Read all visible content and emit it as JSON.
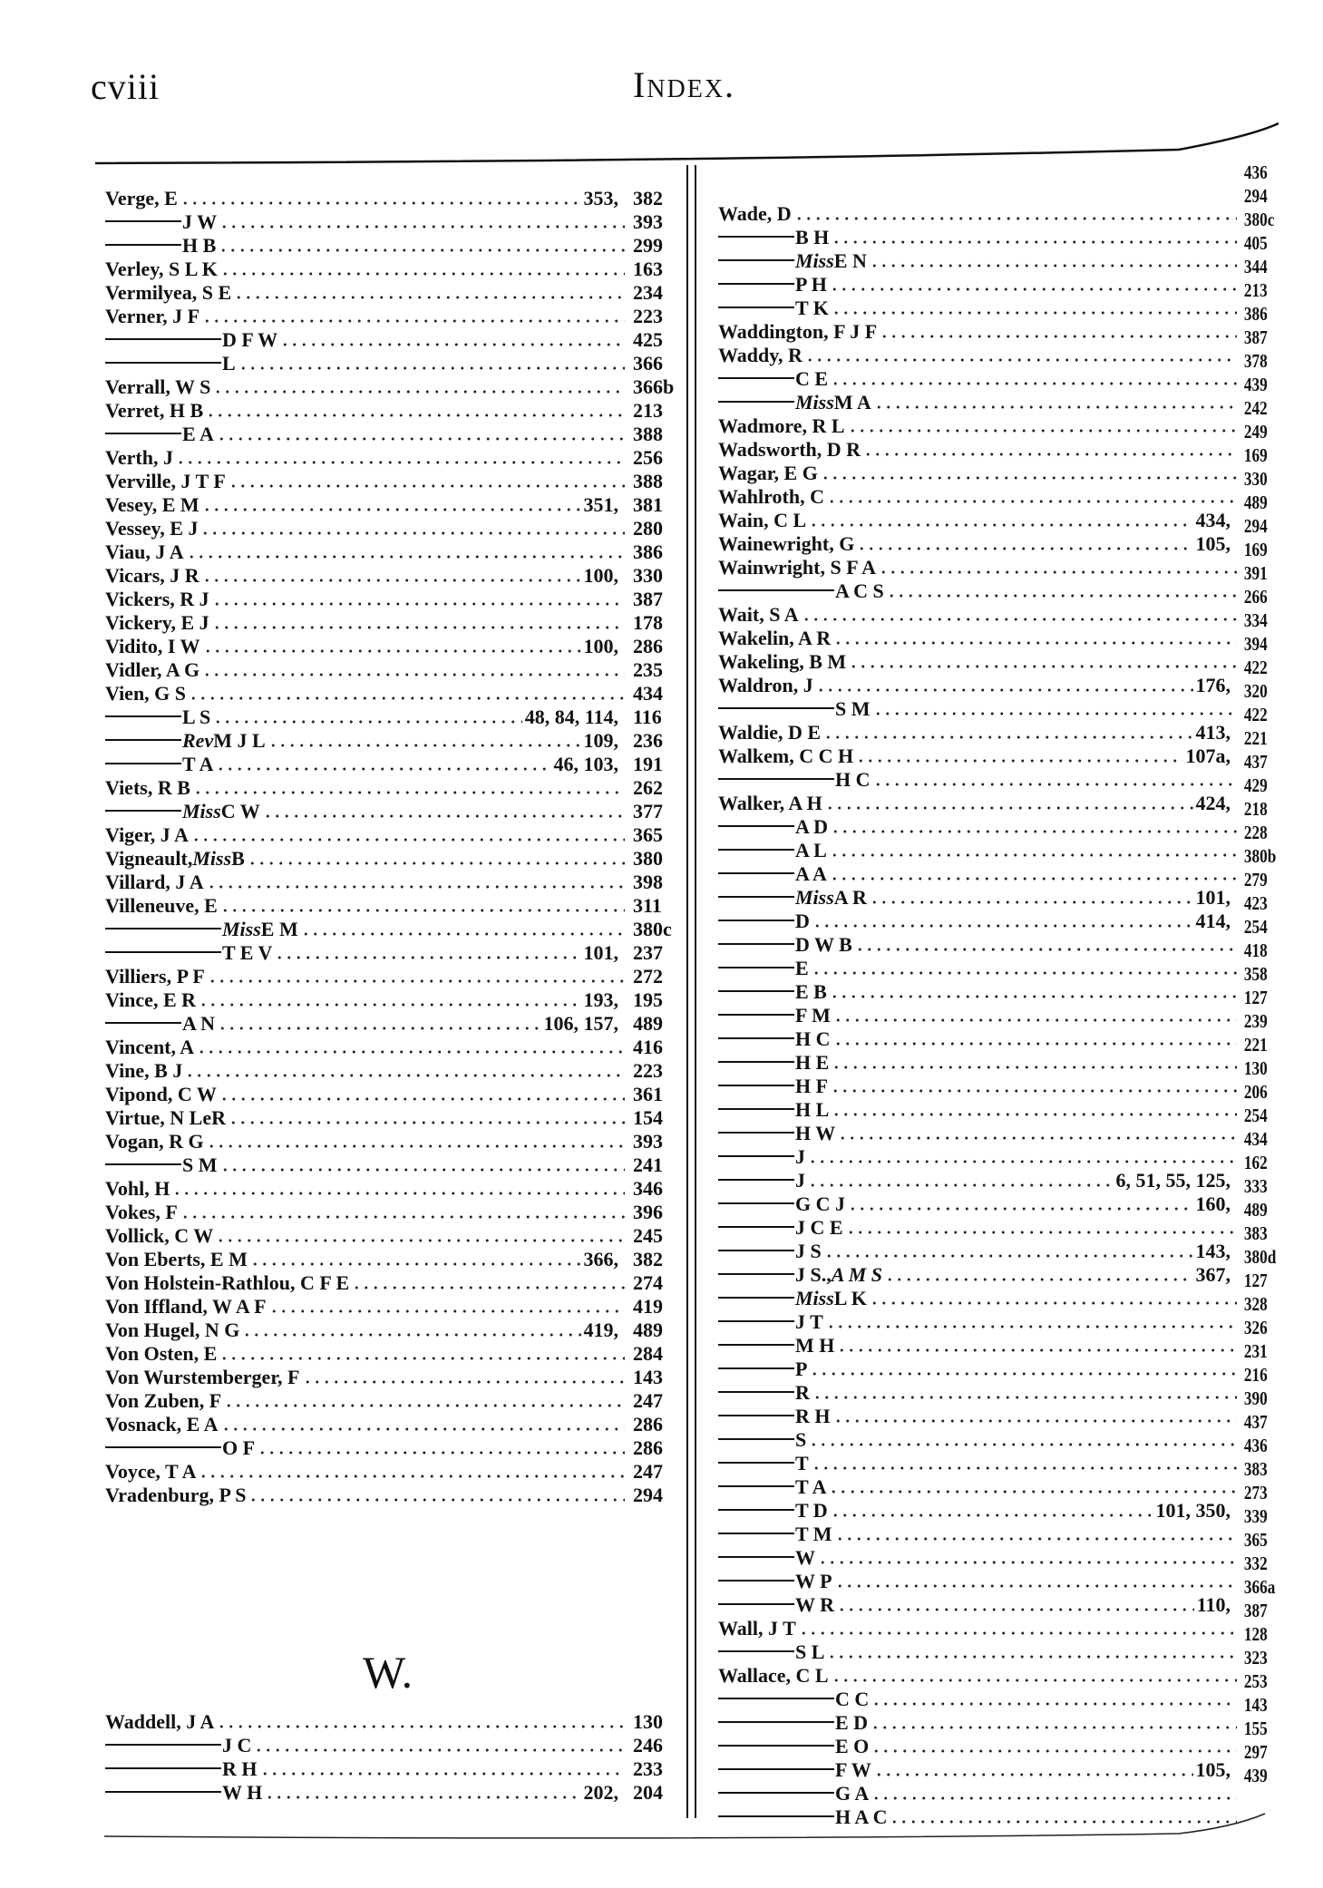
{
  "header": {
    "folio": "cviii",
    "title": "Index."
  },
  "left_column": [
    {
      "dash": 0,
      "pre": "Verge, E",
      "it": "",
      "post": "",
      "refs": "353,",
      "page": "382"
    },
    {
      "dash": 1,
      "pre": "J W",
      "it": "",
      "post": "",
      "refs": "",
      "page": "393"
    },
    {
      "dash": 1,
      "pre": "H B",
      "it": "",
      "post": "",
      "refs": "",
      "page": "299"
    },
    {
      "dash": 0,
      "pre": "Verley, S L K",
      "it": "",
      "post": "",
      "refs": "",
      "page": "163"
    },
    {
      "dash": 0,
      "pre": "Vermilyea, S E",
      "it": "",
      "post": "",
      "refs": "",
      "page": "234"
    },
    {
      "dash": 0,
      "pre": "Verner, J F",
      "it": "",
      "post": "",
      "refs": "",
      "page": "223"
    },
    {
      "dash": 2,
      "pre": "D F W",
      "it": "",
      "post": "",
      "refs": "",
      "page": "425"
    },
    {
      "dash": 2,
      "pre": "L",
      "it": "",
      "post": "",
      "refs": "",
      "page": "366"
    },
    {
      "dash": 0,
      "pre": "Verrall, W S",
      "it": "",
      "post": "",
      "refs": "",
      "page": "366b"
    },
    {
      "dash": 0,
      "pre": "Verret, H B",
      "it": "",
      "post": "",
      "refs": "",
      "page": "213"
    },
    {
      "dash": 1,
      "pre": "E A",
      "it": "",
      "post": "",
      "refs": "",
      "page": "388"
    },
    {
      "dash": 0,
      "pre": "Verth, J",
      "it": "",
      "post": "",
      "refs": "",
      "page": "256"
    },
    {
      "dash": 0,
      "pre": "Verville, J T F",
      "it": "",
      "post": "",
      "refs": "",
      "page": "388"
    },
    {
      "dash": 0,
      "pre": "Vesey, E M",
      "it": "",
      "post": "",
      "refs": "351,",
      "page": "381"
    },
    {
      "dash": 0,
      "pre": "Vessey, E J",
      "it": "",
      "post": "",
      "refs": "",
      "page": "280"
    },
    {
      "dash": 0,
      "pre": "Viau, J A",
      "it": "",
      "post": "",
      "refs": "",
      "page": "386"
    },
    {
      "dash": 0,
      "pre": "Vicars, J R",
      "it": "",
      "post": "",
      "refs": "100,",
      "page": "330"
    },
    {
      "dash": 0,
      "pre": "Vickers, R J",
      "it": "",
      "post": "",
      "refs": "",
      "page": "387"
    },
    {
      "dash": 0,
      "pre": "Vickery, E J",
      "it": "",
      "post": "",
      "refs": "",
      "page": "178"
    },
    {
      "dash": 0,
      "pre": "Vidito, I W",
      "it": "",
      "post": "",
      "refs": "100,",
      "page": "286"
    },
    {
      "dash": 0,
      "pre": "Vidler, A G",
      "it": "",
      "post": "",
      "refs": "",
      "page": "235"
    },
    {
      "dash": 0,
      "pre": "Vien, G S",
      "it": "",
      "post": "",
      "refs": "",
      "page": "434"
    },
    {
      "dash": 1,
      "pre": "L S",
      "it": "",
      "post": "",
      "refs": "48, 84, 114,",
      "page": "116"
    },
    {
      "dash": 1,
      "pre": "",
      "it": "Rev",
      "post": " M J L",
      "refs": "109,",
      "page": "236"
    },
    {
      "dash": 1,
      "pre": "T A",
      "it": "",
      "post": "",
      "refs": "46, 103,",
      "page": "191"
    },
    {
      "dash": 0,
      "pre": "Viets, R B",
      "it": "",
      "post": "",
      "refs": "",
      "page": "262"
    },
    {
      "dash": 1,
      "pre": "",
      "it": "Miss",
      "post": " C W",
      "refs": "",
      "page": "377"
    },
    {
      "dash": 0,
      "pre": "Viger, J A",
      "it": "",
      "post": "",
      "refs": "",
      "page": "365"
    },
    {
      "dash": 0,
      "pre": "Vigneault, ",
      "it": "Miss",
      "post": " B",
      "refs": "",
      "page": "380"
    },
    {
      "dash": 0,
      "pre": "Villard, J A",
      "it": "",
      "post": "",
      "refs": "",
      "page": "398"
    },
    {
      "dash": 0,
      "pre": "Villeneuve, E",
      "it": "",
      "post": "",
      "refs": "",
      "page": "311"
    },
    {
      "dash": 2,
      "pre": "",
      "it": "Miss",
      "post": " E M",
      "refs": "",
      "page": "380c"
    },
    {
      "dash": 2,
      "pre": "T E V",
      "it": "",
      "post": "",
      "refs": "101,",
      "page": "237"
    },
    {
      "dash": 0,
      "pre": "Villiers, P F",
      "it": "",
      "post": "",
      "refs": "",
      "page": "272"
    },
    {
      "dash": 0,
      "pre": "Vince, E R",
      "it": "",
      "post": "",
      "refs": "193,",
      "page": "195"
    },
    {
      "dash": 1,
      "pre": "A N",
      "it": "",
      "post": "",
      "refs": "106, 157,",
      "page": "489"
    },
    {
      "dash": 0,
      "pre": "Vincent, A",
      "it": "",
      "post": "",
      "refs": "",
      "page": "416"
    },
    {
      "dash": 0,
      "pre": "Vine, B J",
      "it": "",
      "post": "",
      "refs": "",
      "page": "223"
    },
    {
      "dash": 0,
      "pre": "Vipond, C W",
      "it": "",
      "post": "",
      "refs": "",
      "page": "361"
    },
    {
      "dash": 0,
      "pre": "Virtue, N LeR",
      "it": "",
      "post": "",
      "refs": "",
      "page": "154"
    },
    {
      "dash": 0,
      "pre": "Vogan, R G",
      "it": "",
      "post": "",
      "refs": "",
      "page": "393"
    },
    {
      "dash": 1,
      "pre": "S M",
      "it": "",
      "post": "",
      "refs": "",
      "page": "241"
    },
    {
      "dash": 0,
      "pre": "Vohl, H",
      "it": "",
      "post": "",
      "refs": "",
      "page": "346"
    },
    {
      "dash": 0,
      "pre": "Vokes, F",
      "it": "",
      "post": "",
      "refs": "",
      "page": "396"
    },
    {
      "dash": 0,
      "pre": "Vollick, C W",
      "it": "",
      "post": "",
      "refs": "",
      "page": "245"
    },
    {
      "dash": 0,
      "pre": "Von Eberts, E M",
      "it": "",
      "post": "",
      "refs": "366,",
      "page": "382"
    },
    {
      "dash": 0,
      "pre": "Von Holstein-Rathlou, C F E",
      "it": "",
      "post": "",
      "refs": "",
      "page": "274"
    },
    {
      "dash": 0,
      "pre": "Von Iffland, W A F",
      "it": "",
      "post": "",
      "refs": "",
      "page": "419"
    },
    {
      "dash": 0,
      "pre": "Von Hugel, N G",
      "it": "",
      "post": "",
      "refs": "419,",
      "page": "489"
    },
    {
      "dash": 0,
      "pre": "Von Osten, E",
      "it": "",
      "post": "",
      "refs": "",
      "page": "284"
    },
    {
      "dash": 0,
      "pre": "Von Wurstemberger, F",
      "it": "",
      "post": "",
      "refs": "",
      "page": "143"
    },
    {
      "dash": 0,
      "pre": "Von Zuben, F",
      "it": "",
      "post": "",
      "refs": "",
      "page": "247"
    },
    {
      "dash": 0,
      "pre": "Vosnack, E A",
      "it": "",
      "post": "",
      "refs": "",
      "page": "286"
    },
    {
      "dash": 2,
      "pre": "O F",
      "it": "",
      "post": "",
      "refs": "",
      "page": "286"
    },
    {
      "dash": 0,
      "pre": "Voyce, T A",
      "it": "",
      "post": "",
      "refs": "",
      "page": "247"
    },
    {
      "dash": 0,
      "pre": "Vradenburg, P S",
      "it": "",
      "post": "",
      "refs": "",
      "page": "294"
    }
  ],
  "section_w": {
    "heading": "W.",
    "entries": [
      {
        "dash": 0,
        "pre": "Waddell, J A",
        "it": "",
        "post": "",
        "refs": "",
        "page": "130"
      },
      {
        "dash": 2,
        "pre": "J C",
        "it": "",
        "post": "",
        "refs": "",
        "page": "246"
      },
      {
        "dash": 2,
        "pre": "R H",
        "it": "",
        "post": "",
        "refs": "",
        "page": "233"
      },
      {
        "dash": 2,
        "pre": "W H",
        "it": "",
        "post": "",
        "refs": "202,",
        "page": "204"
      }
    ]
  },
  "right_column": [
    {
      "dash": 0,
      "pre": "",
      "it": "",
      "post": "",
      "refs": "",
      "page": "436"
    },
    {
      "dash": 0,
      "pre": "Wade, D",
      "it": "",
      "post": "",
      "refs": "",
      "page": "294"
    },
    {
      "dash": 1,
      "pre": "B H",
      "it": "",
      "post": "",
      "refs": "",
      "page": "380c"
    },
    {
      "dash": 1,
      "pre": "",
      "it": "Miss",
      "post": " E N",
      "refs": "",
      "page": "405"
    },
    {
      "dash": 1,
      "pre": "P H",
      "it": "",
      "post": "",
      "refs": "",
      "page": "344"
    },
    {
      "dash": 1,
      "pre": "T K",
      "it": "",
      "post": "",
      "refs": "",
      "page": "213"
    },
    {
      "dash": 0,
      "pre": "Waddington, F J F",
      "it": "",
      "post": "",
      "refs": "",
      "page": "386"
    },
    {
      "dash": 0,
      "pre": "Waddy, R",
      "it": "",
      "post": "",
      "refs": "",
      "page": "387"
    },
    {
      "dash": 1,
      "pre": "C E",
      "it": "",
      "post": "",
      "refs": "",
      "page": "378"
    },
    {
      "dash": 1,
      "pre": "",
      "it": "Miss",
      "post": " M A",
      "refs": "",
      "page": "439"
    },
    {
      "dash": 0,
      "pre": "Wadmore, R L",
      "it": "",
      "post": "",
      "refs": "",
      "page": "242"
    },
    {
      "dash": 0,
      "pre": "Wadsworth, D R",
      "it": "",
      "post": "",
      "refs": "",
      "page": "249"
    },
    {
      "dash": 0,
      "pre": "Wagar, E G",
      "it": "",
      "post": "",
      "refs": "",
      "page": "169"
    },
    {
      "dash": 0,
      "pre": "Wahlroth, C",
      "it": "",
      "post": "",
      "refs": "",
      "page": "330"
    },
    {
      "dash": 0,
      "pre": "Wain, C L",
      "it": "",
      "post": "",
      "refs": "434,",
      "page": "489"
    },
    {
      "dash": 0,
      "pre": "Wainewright, G",
      "it": "",
      "post": "",
      "refs": "105,",
      "page": "294"
    },
    {
      "dash": 0,
      "pre": "Wainwright, S F A",
      "it": "",
      "post": "",
      "refs": "",
      "page": "169"
    },
    {
      "dash": 2,
      "pre": "A C S",
      "it": "",
      "post": "",
      "refs": "",
      "page": "391"
    },
    {
      "dash": 0,
      "pre": "Wait, S A",
      "it": "",
      "post": "",
      "refs": "",
      "page": "266"
    },
    {
      "dash": 0,
      "pre": "Wakelin, A R",
      "it": "",
      "post": "",
      "refs": "",
      "page": "334"
    },
    {
      "dash": 0,
      "pre": "Wakeling, B M",
      "it": "",
      "post": "",
      "refs": "",
      "page": "394"
    },
    {
      "dash": 0,
      "pre": "Waldron, J",
      "it": "",
      "post": "",
      "refs": "176,",
      "page": "422"
    },
    {
      "dash": 2,
      "pre": "S M",
      "it": "",
      "post": "",
      "refs": "",
      "page": "320"
    },
    {
      "dash": 0,
      "pre": "Waldie, D E",
      "it": "",
      "post": "",
      "refs": "413,",
      "page": "422"
    },
    {
      "dash": 0,
      "pre": "Walkem, C C H",
      "it": "",
      "post": "",
      "refs": "107a,",
      "page": "221"
    },
    {
      "dash": 2,
      "pre": "H C",
      "it": "",
      "post": "",
      "refs": "",
      "page": "437"
    },
    {
      "dash": 0,
      "pre": "Walker, A H",
      "it": "",
      "post": "",
      "refs": "424,",
      "page": "429"
    },
    {
      "dash": 1,
      "pre": "A D",
      "it": "",
      "post": "",
      "refs": "",
      "page": "218"
    },
    {
      "dash": 1,
      "pre": "A L",
      "it": "",
      "post": "",
      "refs": "",
      "page": "228"
    },
    {
      "dash": 1,
      "pre": "A A",
      "it": "",
      "post": "",
      "refs": "",
      "page": "380b"
    },
    {
      "dash": 1,
      "pre": "",
      "it": "Miss",
      "post": " A R",
      "refs": "101,",
      "page": "279"
    },
    {
      "dash": 1,
      "pre": "D",
      "it": "",
      "post": "",
      "refs": "414,",
      "page": "423"
    },
    {
      "dash": 1,
      "pre": "D W B",
      "it": "",
      "post": "",
      "refs": "",
      "page": "254"
    },
    {
      "dash": 1,
      "pre": "E",
      "it": "",
      "post": "",
      "refs": "",
      "page": "418"
    },
    {
      "dash": 1,
      "pre": "E B",
      "it": "",
      "post": "",
      "refs": "",
      "page": "358"
    },
    {
      "dash": 1,
      "pre": "F M",
      "it": "",
      "post": "",
      "refs": "",
      "page": "127"
    },
    {
      "dash": 1,
      "pre": "H C",
      "it": "",
      "post": "",
      "refs": "",
      "page": "239"
    },
    {
      "dash": 1,
      "pre": "H E",
      "it": "",
      "post": "",
      "refs": "",
      "page": "221"
    },
    {
      "dash": 1,
      "pre": "H F",
      "it": "",
      "post": "",
      "refs": "",
      "page": "130"
    },
    {
      "dash": 1,
      "pre": "H L",
      "it": "",
      "post": "",
      "refs": "",
      "page": "206"
    },
    {
      "dash": 1,
      "pre": "H W",
      "it": "",
      "post": "",
      "refs": "",
      "page": "254"
    },
    {
      "dash": 1,
      "pre": "J",
      "it": "",
      "post": "",
      "refs": "",
      "page": "434"
    },
    {
      "dash": 1,
      "pre": "J",
      "it": "",
      "post": "",
      "refs": "6, 51, 55, 125,",
      "page": "162"
    },
    {
      "dash": 1,
      "pre": "G C J",
      "it": "",
      "post": "",
      "refs": "160,",
      "page": "333"
    },
    {
      "dash": 1,
      "pre": "J C E",
      "it": "",
      "post": "",
      "refs": "",
      "page": "489"
    },
    {
      "dash": 1,
      "pre": "J S",
      "it": "",
      "post": "",
      "refs": "143,",
      "page": "383"
    },
    {
      "dash": 1,
      "pre": "J S., ",
      "it": "A M S",
      "post": "",
      "refs": "367,",
      "page": "380d"
    },
    {
      "dash": 1,
      "pre": "",
      "it": "Miss",
      "post": " L K",
      "refs": "",
      "page": "127"
    },
    {
      "dash": 1,
      "pre": "J T",
      "it": "",
      "post": "",
      "refs": "",
      "page": "328"
    },
    {
      "dash": 1,
      "pre": "M H",
      "it": "",
      "post": "",
      "refs": "",
      "page": "326"
    },
    {
      "dash": 1,
      "pre": "P",
      "it": "",
      "post": "",
      "refs": "",
      "page": "231"
    },
    {
      "dash": 1,
      "pre": "R",
      "it": "",
      "post": "",
      "refs": "",
      "page": "216"
    },
    {
      "dash": 1,
      "pre": "R H",
      "it": "",
      "post": "",
      "refs": "",
      "page": "390"
    },
    {
      "dash": 1,
      "pre": "S",
      "it": "",
      "post": "",
      "refs": "",
      "page": "437"
    },
    {
      "dash": 1,
      "pre": "T",
      "it": "",
      "post": "",
      "refs": "",
      "page": "436"
    },
    {
      "dash": 1,
      "pre": "T A",
      "it": "",
      "post": "",
      "refs": "",
      "page": "383"
    },
    {
      "dash": 1,
      "pre": "T D",
      "it": "",
      "post": "",
      "refs": "101, 350,",
      "page": "273"
    },
    {
      "dash": 1,
      "pre": "T M",
      "it": "",
      "post": "",
      "refs": "",
      "page": "339"
    },
    {
      "dash": 1,
      "pre": "W",
      "it": "",
      "post": "",
      "refs": "",
      "page": "365"
    },
    {
      "dash": 1,
      "pre": "W P",
      "it": "",
      "post": "",
      "refs": "",
      "page": "332"
    },
    {
      "dash": 1,
      "pre": "W R",
      "it": "",
      "post": "",
      "refs": "110,",
      "page": "366a"
    },
    {
      "dash": 0,
      "pre": "Wall, J T",
      "it": "",
      "post": "",
      "refs": "",
      "page": "387"
    },
    {
      "dash": 1,
      "pre": "S L",
      "it": "",
      "post": "",
      "refs": "",
      "page": "128"
    },
    {
      "dash": 0,
      "pre": "Wallace, C L",
      "it": "",
      "post": "",
      "refs": "",
      "page": "323"
    },
    {
      "dash": 2,
      "pre": "C C",
      "it": "",
      "post": "",
      "refs": "",
      "page": "253"
    },
    {
      "dash": 2,
      "pre": "E D",
      "it": "",
      "post": "",
      "refs": "",
      "page": "143"
    },
    {
      "dash": 2,
      "pre": "E O",
      "it": "",
      "post": "",
      "refs": "",
      "page": "155"
    },
    {
      "dash": 2,
      "pre": "F W",
      "it": "",
      "post": "",
      "refs": "105,",
      "page": "297"
    },
    {
      "dash": 2,
      "pre": "G A",
      "it": "",
      "post": "",
      "refs": "",
      "page": "439"
    },
    {
      "dash": 2,
      "pre": "H A C",
      "it": "",
      "post": "",
      "refs": "",
      "page": ""
    }
  ]
}
